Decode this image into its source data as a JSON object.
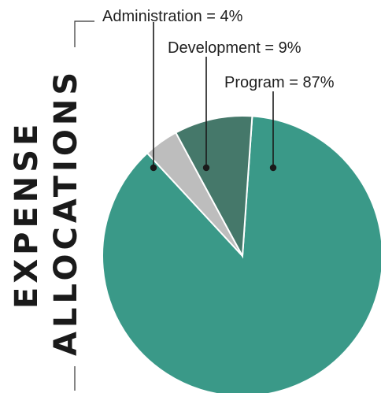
{
  "chart_data": {
    "type": "pie",
    "title_line1": "EXPENSE",
    "title_line2": "ALLOCATIONS",
    "slices": [
      {
        "label": "Program = 87%",
        "category": "Program",
        "value": 87,
        "color": "#3a9988"
      },
      {
        "label": "Administration = 4%",
        "category": "Administration",
        "value": 4,
        "color": "#bdbdbd"
      },
      {
        "label": "Development = 9%",
        "category": "Development",
        "value": 9,
        "color": "#45786a"
      }
    ],
    "legend": "callouts"
  }
}
